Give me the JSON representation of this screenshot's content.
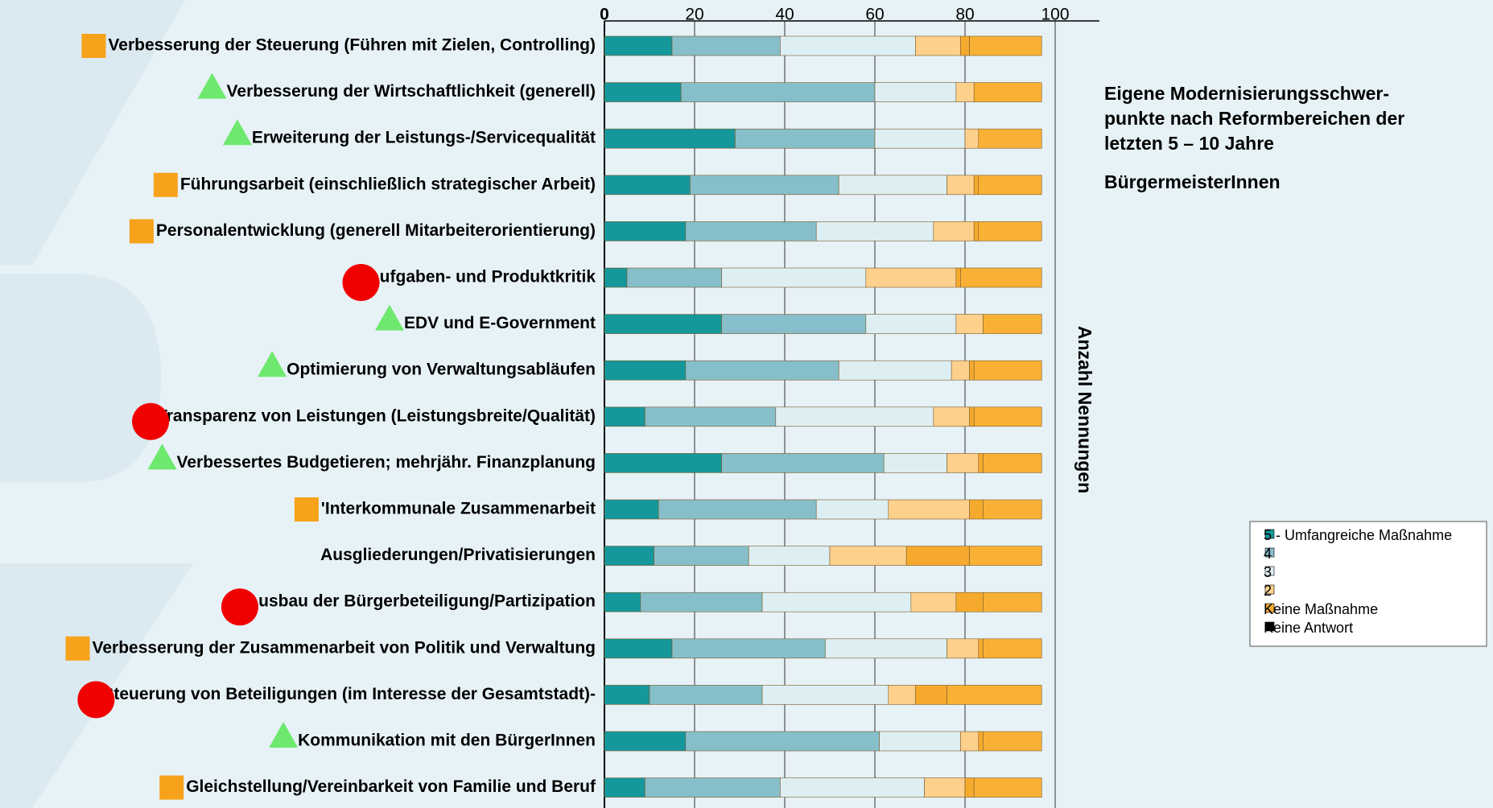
{
  "chart_data": {
    "type": "stacked_barh",
    "title_lines": [
      "Eigene Modernisierungsschwer-",
      "punkte nach Reformbereichen der",
      "letzten 5 – 10 Jahre"
    ],
    "subtitle": "BürgermeisterInnen",
    "x_label": "Anzahl Nennungen",
    "categories": [
      "Verbesserung der Steuerung (Führen mit Zielen, Controlling)",
      "Verbesserung der Wirtschaftlichkeit (generell)",
      "Erweiterung der Leistungs-/Servicequalität",
      "Führungsarbeit (einschließlich strategischer Arbeit)",
      "Personalentwicklung (generell Mitarbeiterorientierung)",
      "Aufgaben- und Produktkritik",
      "EDV und E-Government",
      "Optimierung von Verwaltungsabläufen",
      "Transparenz von Leistungen (Leistungsbreite/Qualität)",
      "Verbessertes Budgetieren; mehrjähr. Finanzplanung",
      "'Interkommunale Zusammenarbeit",
      "Ausgliederungen/Privatisierungen",
      "Ausbau der Bürgerbeteiligung/Partizipation",
      "Verbesserung der Zusammenarbeit von Politik und Verwaltung",
      "Steuerung von Beteiligungen (im Interesse der Gesamtstadt)-",
      "Kommunikation mit den BürgerInnen",
      "Gleichstellung/Vereinbarkeit von Familie und Beruf"
    ],
    "markers": [
      "square",
      "triangle",
      "triangle",
      "square",
      "square",
      "circle",
      "triangle",
      "triangle",
      "circle",
      "triangle",
      "square",
      null,
      "circle",
      "square",
      "circle",
      "triangle",
      "square"
    ],
    "marker_colors": {
      "square": "#f7a21b",
      "triangle": "#6ee86e",
      "circle": "#f00000"
    },
    "series": [
      {
        "name": "5 - Umfangreiche Maßnahme",
        "color": "#15989c",
        "values": [
          15,
          17,
          29,
          19,
          18,
          5,
          26,
          18,
          9,
          26,
          12,
          11,
          8,
          15,
          10,
          18,
          9
        ]
      },
      {
        "name": "4",
        "color": "#86bfca",
        "values": [
          24,
          43,
          31,
          33,
          29,
          21,
          32,
          34,
          29,
          36,
          35,
          21,
          27,
          34,
          25,
          43,
          30
        ]
      },
      {
        "name": "3",
        "color": "#ddeff3",
        "values": [
          30,
          18,
          20,
          24,
          26,
          32,
          20,
          25,
          35,
          14,
          16,
          18,
          33,
          27,
          28,
          18,
          32
        ]
      },
      {
        "name": "2",
        "color": "#fdd08c",
        "values": [
          10,
          4,
          3,
          6,
          9,
          20,
          6,
          4,
          8,
          7,
          18,
          17,
          10,
          7,
          6,
          4,
          9
        ]
      },
      {
        "name": "Keine Maßnahme",
        "color": "#f5aa2e",
        "values": [
          2,
          0,
          0,
          1,
          1,
          1,
          0,
          1,
          1,
          1,
          3,
          14,
          6,
          1,
          7,
          1,
          2
        ]
      },
      {
        "name": "Keine Antwort",
        "color": "#f9b135",
        "values": [
          16,
          15,
          14,
          14,
          14,
          18,
          13,
          15,
          15,
          13,
          13,
          16,
          13,
          13,
          21,
          13,
          15
        ]
      }
    ],
    "xlim": [
      0,
      100
    ],
    "xticks": [
      0,
      20,
      40,
      60,
      80,
      100
    ],
    "grid": true
  }
}
